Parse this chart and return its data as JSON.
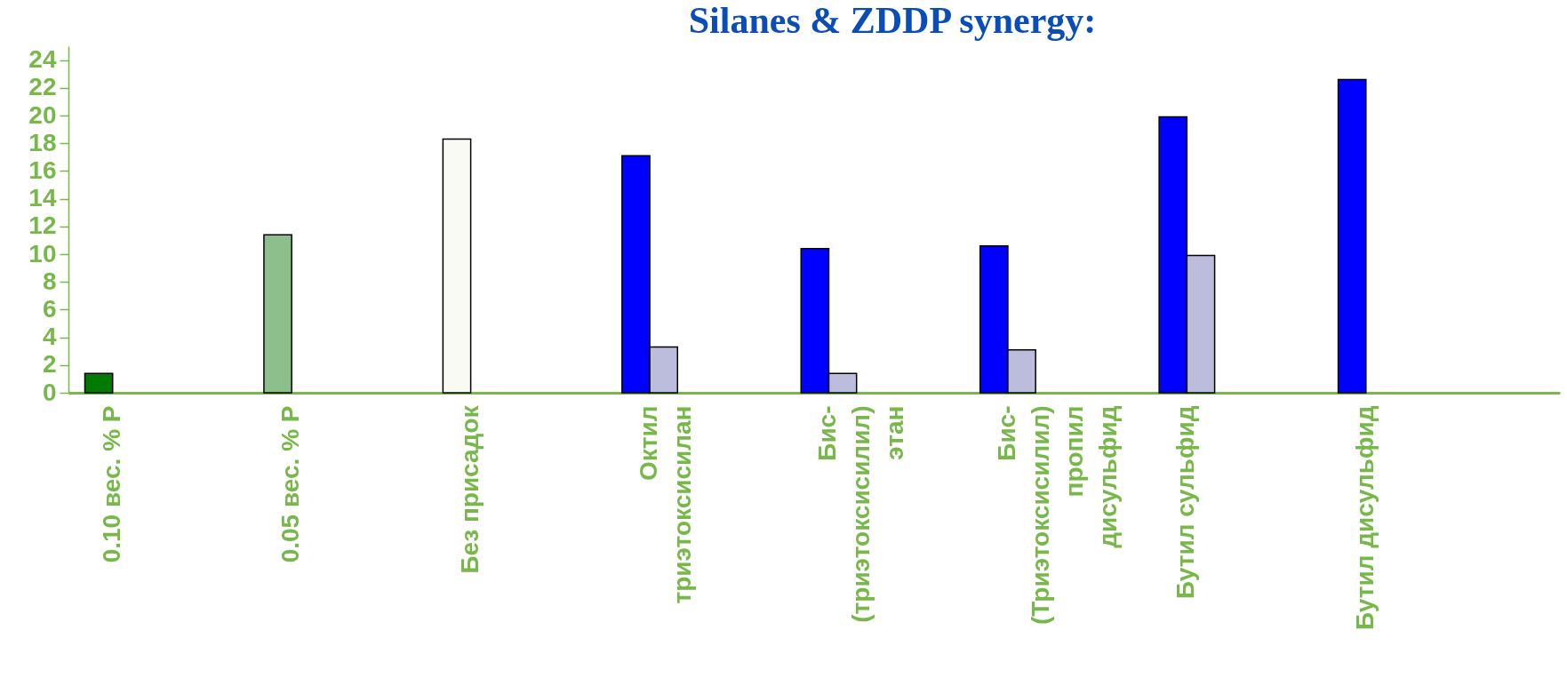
{
  "chart_data": {
    "type": "bar",
    "title": "Silanes & ZDDP synergy:",
    "categories": [
      "0.10 вес. % P",
      "0.05 вес. % P",
      "Без присадок",
      "Октил\nтриэтоксисилан",
      "Бис-\n(триэтоксисилил)\nэтан",
      "Бис-\n(Триэтоксисилил)\nпропил\nдисульфид",
      "Бутил сульфид",
      "Бутил дисульфид"
    ],
    "series": [
      {
        "colors": [
          "#007a00",
          "#8cbf8c",
          "#fafaf5",
          "#0000ff",
          "#0000ff",
          "#0000ff",
          "#0000ff",
          "#0000ff"
        ],
        "values": [
          1.4,
          11.4,
          18.3,
          17.1,
          10.4,
          10.6,
          19.9,
          22.6
        ]
      },
      {
        "color": "#bcbcdc",
        "values": [
          null,
          null,
          null,
          3.3,
          1.4,
          3.1,
          9.9,
          null
        ]
      }
    ],
    "ylim": [
      0,
      25
    ],
    "yticks": [
      0,
      2,
      4,
      6,
      8,
      10,
      12,
      14,
      16,
      18,
      20,
      22,
      24
    ],
    "grid": false
  }
}
